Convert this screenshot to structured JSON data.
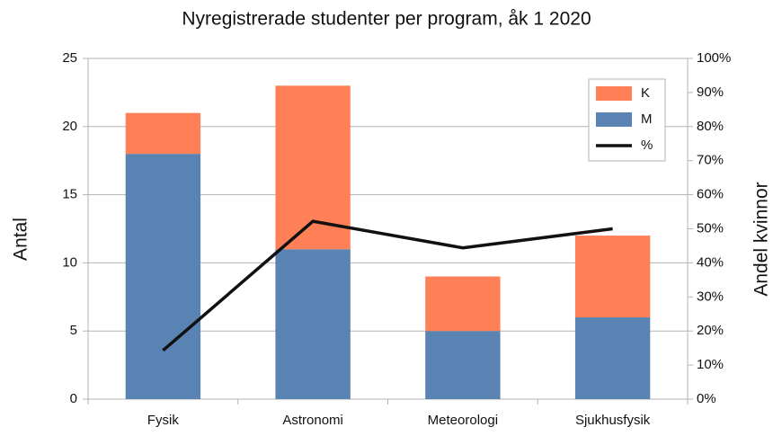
{
  "chart_data": {
    "type": "bar",
    "title": "Nyregistrerade studenter per program, åk 1 2020",
    "categories": [
      "Fysik",
      "Astronomi",
      "Meteorologi",
      "Sjukhusfysik"
    ],
    "stacked": true,
    "series": [
      {
        "name": "M",
        "color": "#5983b3",
        "values": [
          18,
          11,
          5,
          6
        ]
      },
      {
        "name": "K",
        "color": "#ff7f57",
        "values": [
          3,
          12,
          4,
          6
        ]
      },
      {
        "name": "%",
        "type": "line",
        "axis": "y2",
        "color": "#111111",
        "values": [
          14.3,
          52.2,
          44.4,
          50
        ]
      }
    ],
    "legend_order": [
      "K",
      "M",
      "%"
    ],
    "legend": "top-right",
    "ylabel": "Antal",
    "y2label": "Andel kvinnor",
    "ylim": [
      0,
      25
    ],
    "yticks": [
      0,
      5,
      10,
      15,
      20,
      25
    ],
    "y2lim": [
      0,
      100
    ],
    "y2ticks": [
      {
        "value": 0,
        "label": "0%"
      },
      {
        "value": 10,
        "label": "10%"
      },
      {
        "value": 20,
        "label": "20%"
      },
      {
        "value": 30,
        "label": "30%"
      },
      {
        "value": 40,
        "label": "40%"
      },
      {
        "value": 50,
        "label": "50%"
      },
      {
        "value": 60,
        "label": "60%"
      },
      {
        "value": 70,
        "label": "70%"
      },
      {
        "value": 80,
        "label": "80%"
      },
      {
        "value": 90,
        "label": "90%"
      },
      {
        "value": 100,
        "label": "100%"
      }
    ],
    "grid": true
  }
}
